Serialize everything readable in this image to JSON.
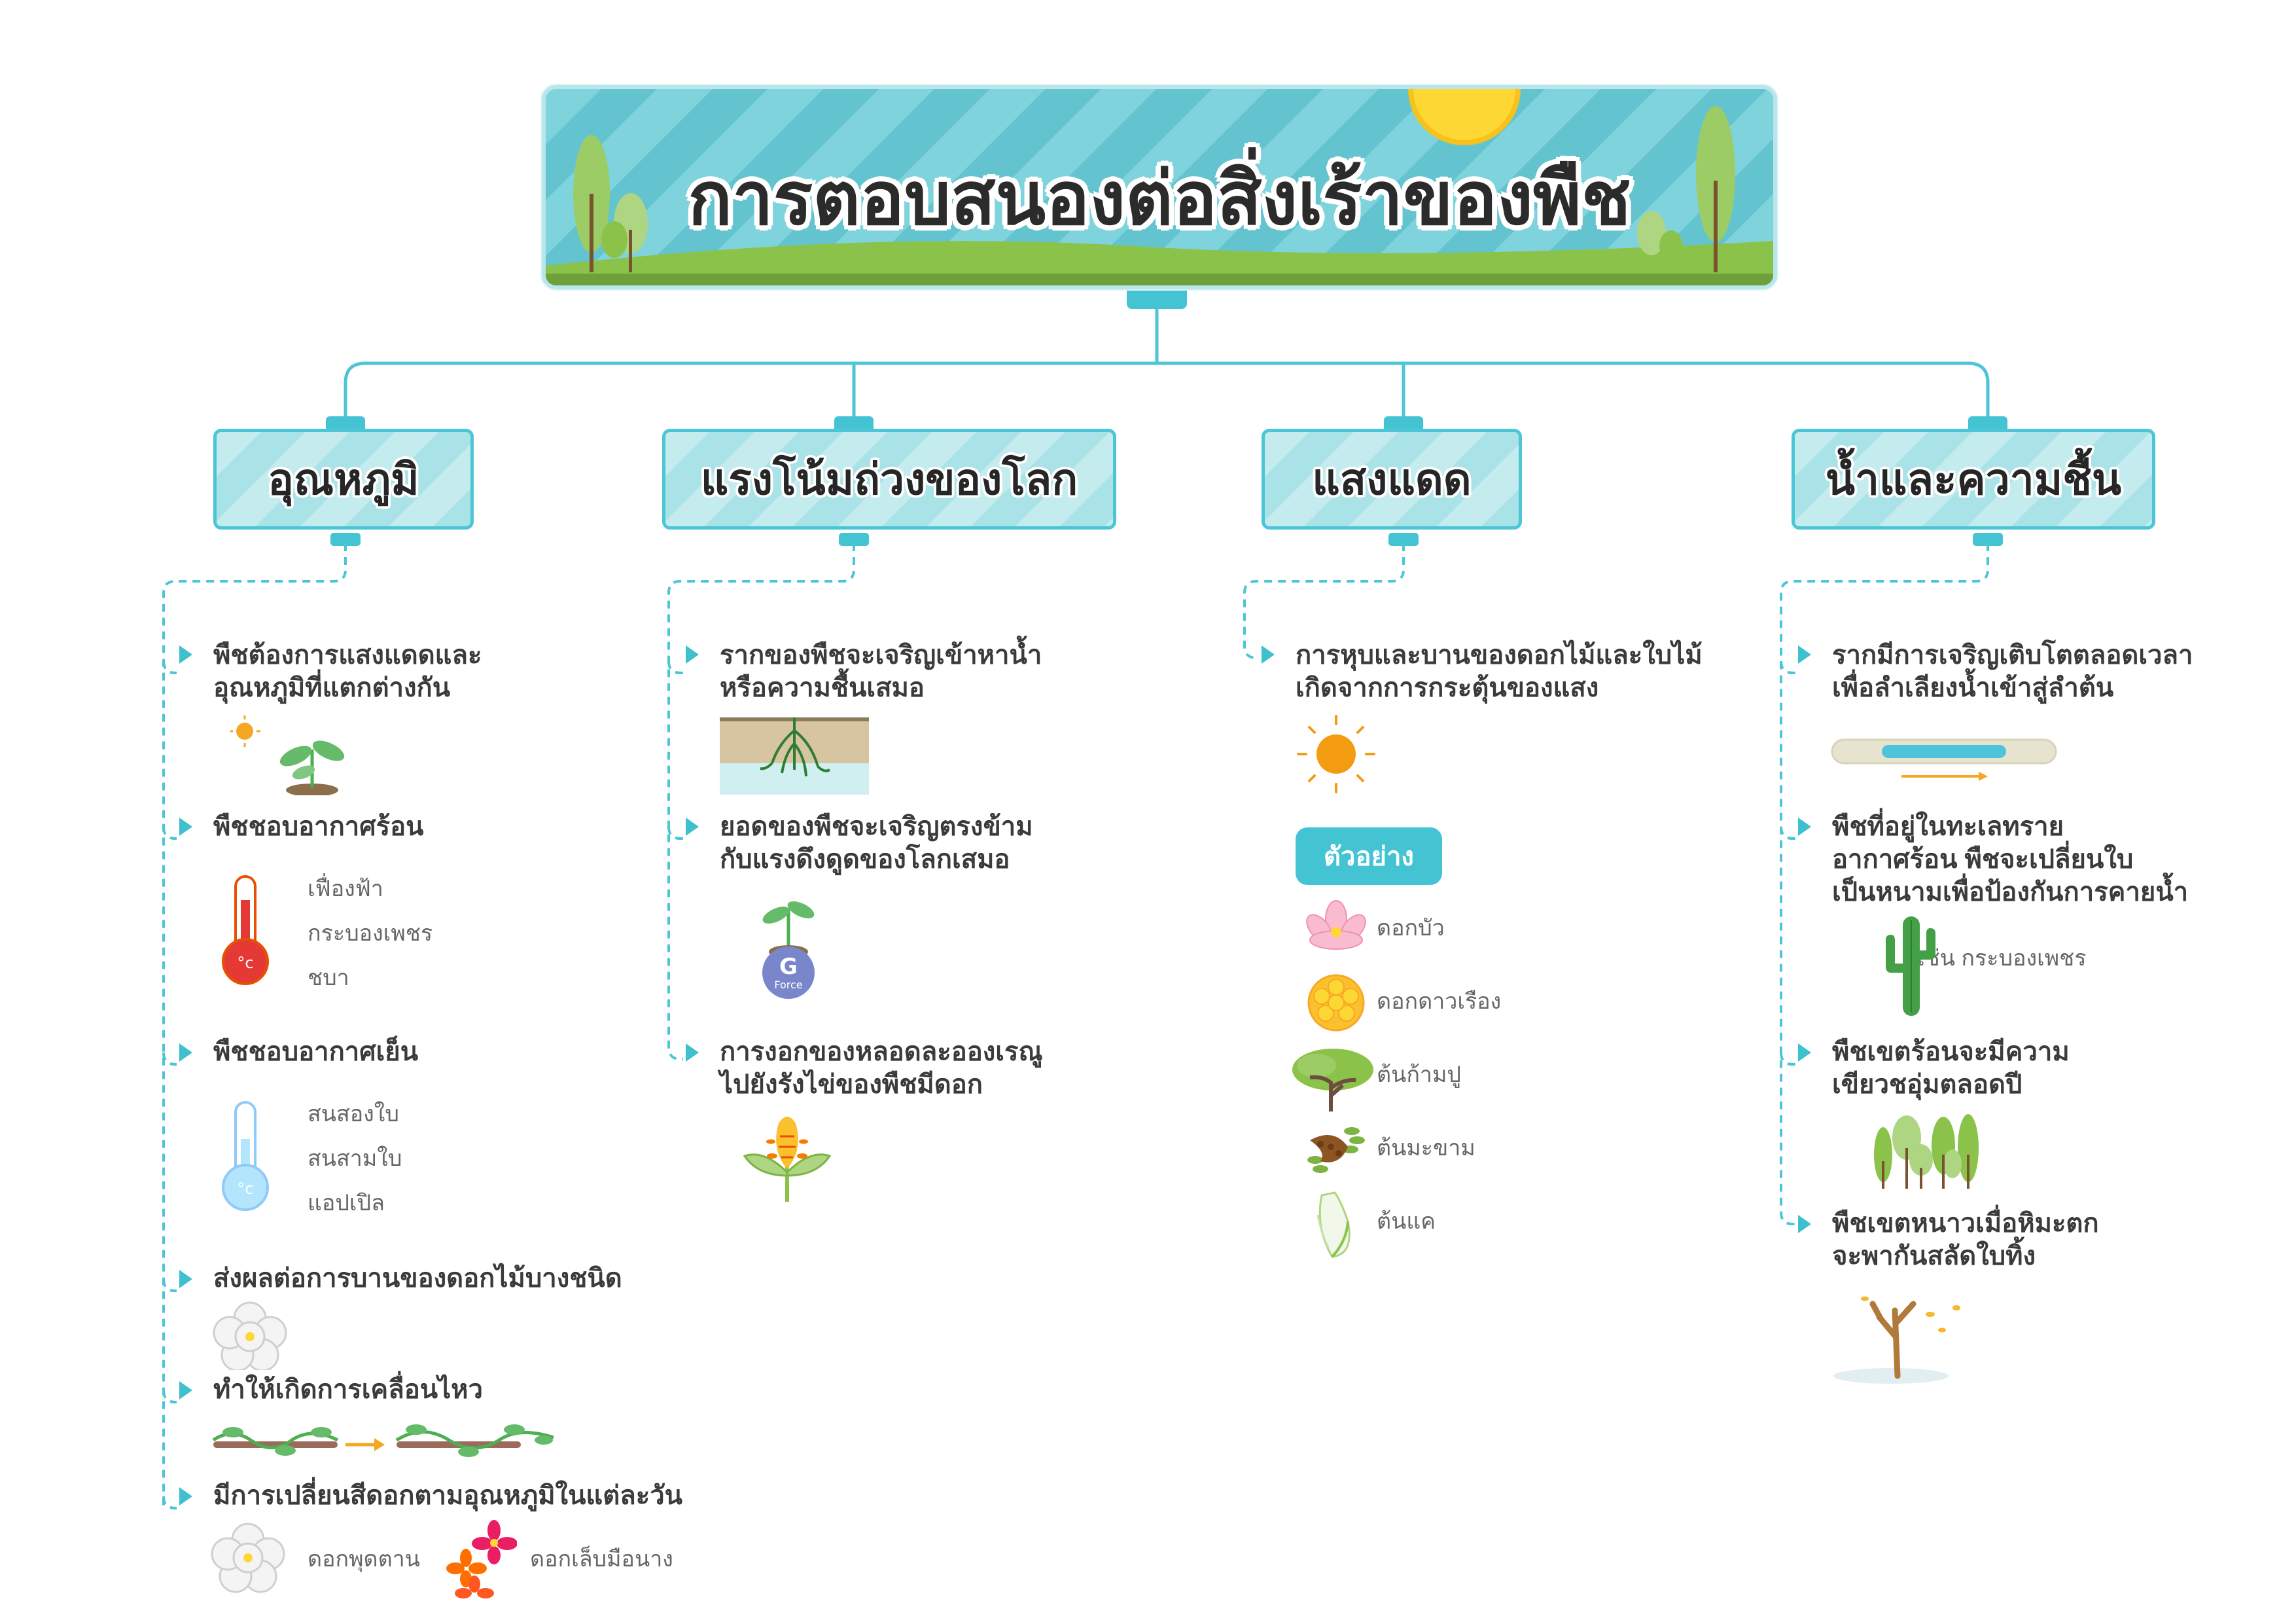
{
  "title": "การตอบสนองต่อสิ่งเร้าของพืช",
  "categories": [
    {
      "name": "อุณหภูมิ",
      "items": [
        {
          "line1": "พืชต้องการแสงแดดและ",
          "line2": "อุณหภูมิที่แตกต่างกัน"
        },
        {
          "line1": "พืชชอบอากาศร้อน",
          "subs": [
            "เฟื่องฟ้า",
            "กระบองเพชร",
            "ชบา"
          ]
        },
        {
          "line1": "พืชชอบอากาศเย็น",
          "subs": [
            "สนสองใบ",
            "สนสามใบ",
            "แอปเปิล"
          ]
        },
        {
          "line1": "ส่งผลต่อการบานของดอกไม้บางชนิด"
        },
        {
          "line1": "ทำให้เกิดการเคลื่อนไหว"
        },
        {
          "line1": "มีการเปลี่ยนสีดอกตามอุณหภูมิในแต่ละวัน",
          "subs": [
            "ดอกพุดตาน",
            "ดอกเล็บมือนาง"
          ]
        }
      ]
    },
    {
      "name": "แรงโน้มถ่วงของโลก",
      "items": [
        {
          "line1": "รากของพืชจะเจริญเข้าหาน้ำ",
          "line2": "หรือความชื้นเสมอ"
        },
        {
          "line1": "ยอดของพืชจะเจริญตรงข้าม",
          "line2": "กับแรงดึงดูดของโลกเสมอ",
          "icon_text_1": "G",
          "icon_text_2": "Force"
        },
        {
          "line1": "การงอกของหลอดละอองเรณู",
          "line2": "ไปยังรังไข่ของพืชมีดอก"
        }
      ]
    },
    {
      "name": "แสงแดด",
      "items": [
        {
          "line1": "การหุบและบานของดอกไม้และใบไม้",
          "line2": "เกิดจากการกระตุ้นของแสง"
        }
      ],
      "example_label": "ตัวอย่าง",
      "examples": [
        "ดอกบัว",
        "ดอกดาวเรือง",
        "ต้นก้ามปู",
        "ต้นมะขาม",
        "ต้นแค"
      ]
    },
    {
      "name": "น้ำและความชื้น",
      "items": [
        {
          "line1": "รากมีการเจริญเติบโตตลอดเวลา",
          "line2": "เพื่อลำเลียงน้ำเข้าสู่ลำต้น"
        },
        {
          "line1": "พืชที่อยู่ในทะเลทราย",
          "line2": "อากาศร้อน พืชจะเปลี่ยนใบ",
          "line3": "เป็นหนามเพื่อป้องกันการคายน้ำ",
          "sub": "เช่น กระบองเพชร"
        },
        {
          "line1": "พืชเขตร้อนจะมีความ",
          "line2": "เขียวชอุ่มตลอดปี"
        },
        {
          "line1": "พืชเขตหนาวเมื่อหิมะตก",
          "line2": "จะพากันสลัดใบทิ้ง"
        }
      ]
    }
  ],
  "colors": {
    "accent": "#44c4d3",
    "arrow": "#3fc0cf",
    "sun": "#f5a623",
    "green": "#7cc04b"
  }
}
